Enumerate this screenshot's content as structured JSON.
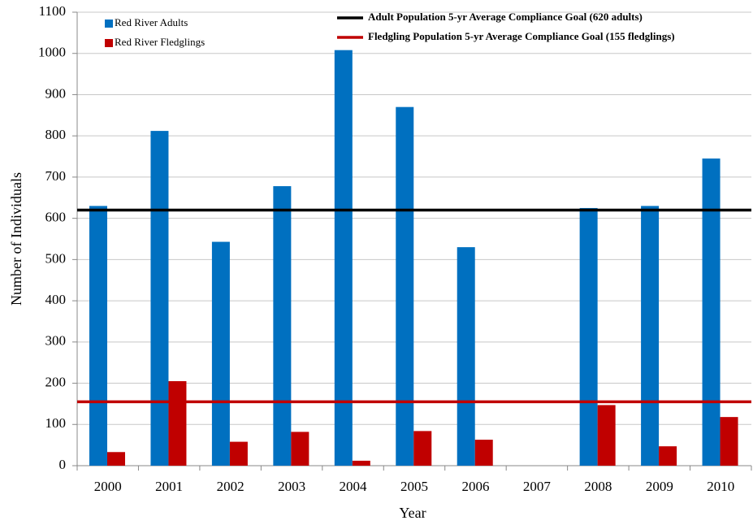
{
  "chart_data": {
    "type": "bar",
    "categories": [
      "2000",
      "2001",
      "2002",
      "2003",
      "2004",
      "2005",
      "2006",
      "2007",
      "2008",
      "2009",
      "2010"
    ],
    "series": [
      {
        "name": "Red River Adults",
        "color": "#0070c0",
        "values": [
          630,
          812,
          543,
          678,
          1008,
          870,
          530,
          null,
          625,
          630,
          745
        ]
      },
      {
        "name": "Red River Fledglings",
        "color": "#c00000",
        "values": [
          33,
          205,
          58,
          82,
          12,
          84,
          63,
          null,
          147,
          47,
          118
        ]
      }
    ],
    "reference_lines": [
      {
        "name": "Adult Population 5-yr Average Compliance Goal  (620 adults)",
        "value": 620,
        "color": "#000000"
      },
      {
        "name": "Fledgling Population 5-yr Average Compliance Goal (155 fledglings)",
        "value": 155,
        "color": "#c00000"
      }
    ],
    "ylim": [
      0,
      1100
    ],
    "yticks": [
      0,
      100,
      200,
      300,
      400,
      500,
      600,
      700,
      800,
      900,
      1000,
      1100
    ],
    "y_label": "Number of Individuals",
    "x_label": "Year",
    "grid": true
  }
}
